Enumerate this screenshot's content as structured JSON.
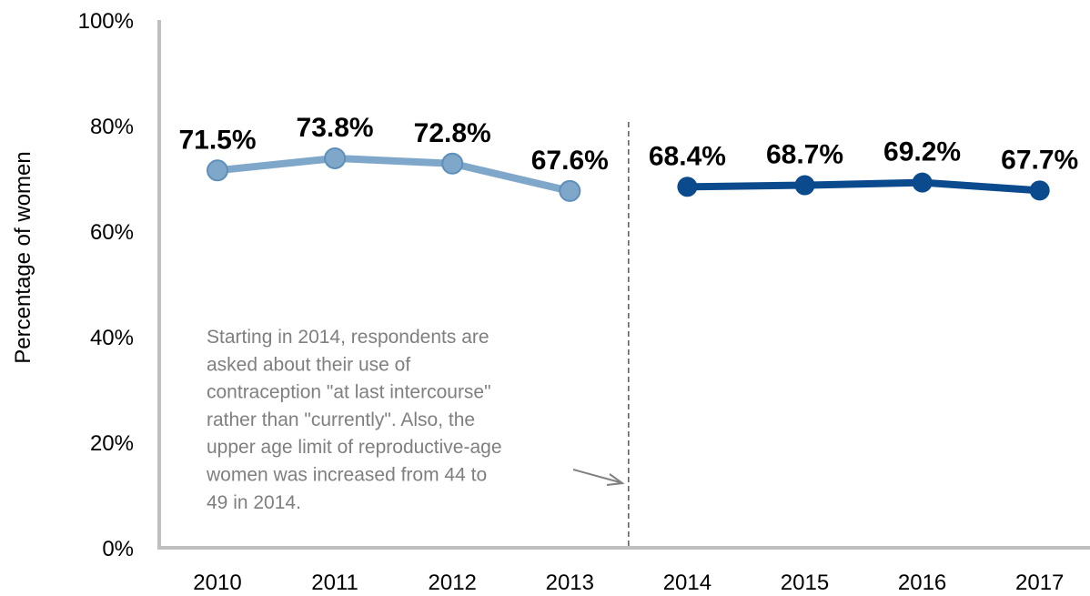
{
  "chart_data": {
    "type": "line",
    "xlabel": "",
    "ylabel": "Percentage of women",
    "ylim": [
      0,
      100
    ],
    "y_ticks": [
      "0%",
      "20%",
      "40%",
      "60%",
      "80%",
      "100%"
    ],
    "categories": [
      "2010",
      "2011",
      "2012",
      "2013",
      "2014",
      "2015",
      "2016",
      "2017"
    ],
    "grid": false,
    "legend": "none",
    "series": [
      {
        "x": [
          "2010",
          "2011",
          "2012",
          "2013"
        ],
        "values": [
          71.5,
          73.8,
          72.8,
          67.6
        ],
        "labels": [
          "71.5%",
          "73.8%",
          "72.8%",
          "67.6%"
        ],
        "color": "#7fa7c9"
      },
      {
        "x": [
          "2014",
          "2015",
          "2016",
          "2017"
        ],
        "values": [
          68.4,
          68.7,
          69.2,
          67.7
        ],
        "labels": [
          "68.4%",
          "68.7%",
          "69.2%",
          "67.7%"
        ],
        "color": "#0b4a8c"
      }
    ],
    "annotation": {
      "lines": [
        "Starting in 2014, respondents are",
        "asked about their use of",
        "contraception \"at last intercourse\"",
        "rather than \"currently\". Also, the",
        "upper age limit of reproductive-age",
        "women was increased from 44 to",
        "49 in 2014."
      ],
      "color": "#7f7f7f"
    },
    "divider": {
      "between": [
        "2013",
        "2014"
      ],
      "style": "dashed"
    }
  }
}
